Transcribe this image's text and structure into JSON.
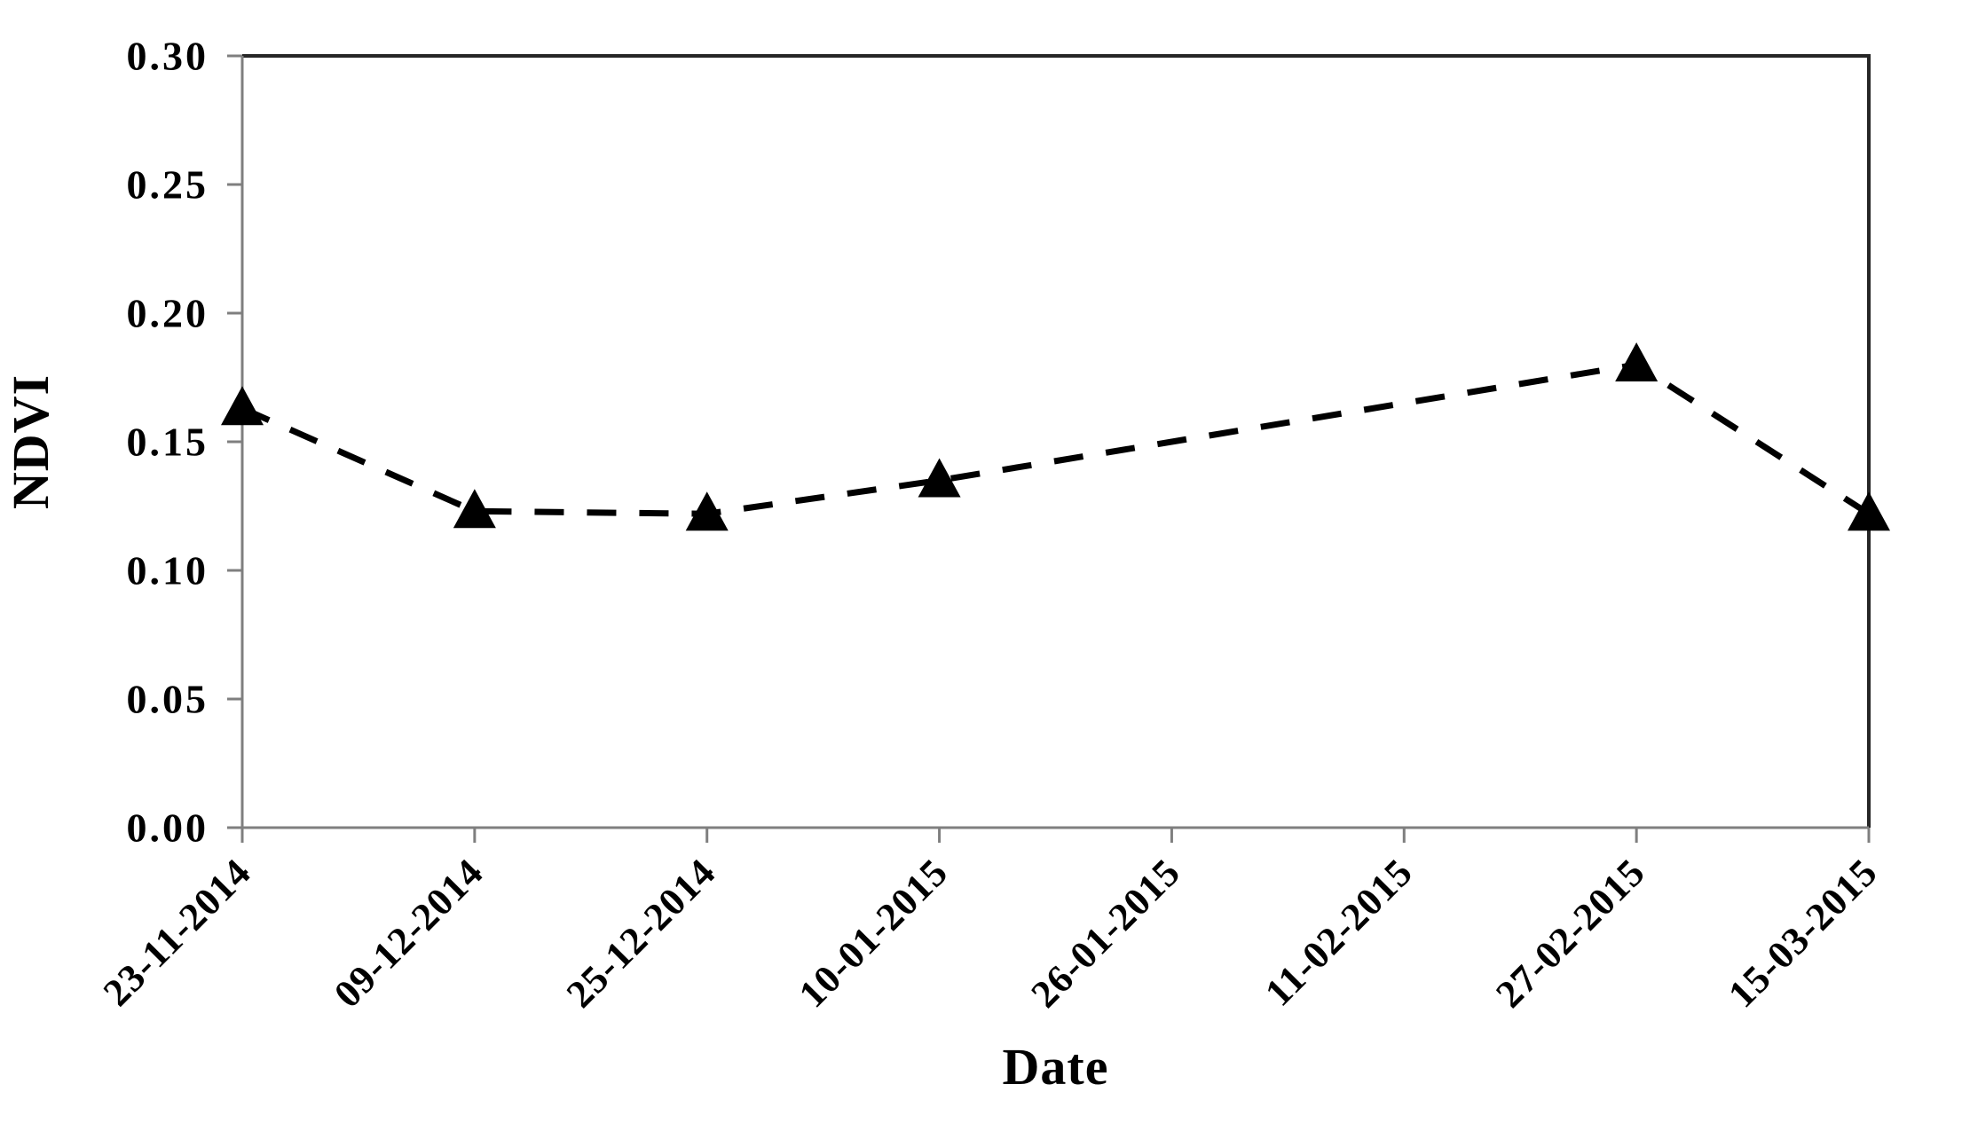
{
  "chart_data": {
    "type": "line",
    "title": "",
    "xlabel": "Date",
    "ylabel": "NDVI",
    "x_categories": [
      "23-11-2014",
      "09-12-2014",
      "25-12-2014",
      "10-01-2015",
      "26-01-2015",
      "11-02-2015",
      "27-02-2015",
      "15-03-2015"
    ],
    "y_tick_labels": [
      "0.00",
      "0.05",
      "0.10",
      "0.15",
      "0.20",
      "0.25",
      "0.30"
    ],
    "y_tick_values": [
      0.0,
      0.05,
      0.1,
      0.15,
      0.2,
      0.25,
      0.3
    ],
    "ylim": [
      0.0,
      0.3
    ],
    "grid": false,
    "legend_position": "none",
    "series": [
      {
        "name": "NDVI",
        "line_style": "dashed",
        "marker": "filled-triangle-up",
        "color": "#000000",
        "points": [
          {
            "date": "23-11-2014",
            "value": 0.163
          },
          {
            "date": "09-12-2014",
            "value": 0.123
          },
          {
            "date": "25-12-2014",
            "value": 0.122
          },
          {
            "date": "10-01-2015",
            "value": 0.135
          },
          {
            "date": "27-02-2015",
            "value": 0.18
          },
          {
            "date": "15-03-2015",
            "value": 0.122
          }
        ]
      }
    ],
    "layout_notes": "No markers at 26-01-2015 and 11-02-2015; the dashed line runs straight from the 10-01-2015 point to the 27-02-2015 point. X tick labels rotated 45 degrees."
  },
  "style": {
    "background": "#ffffff",
    "axis_color": "#7f7f7f",
    "frame_color": "#262626",
    "line_color": "#000000",
    "marker_color": "#000000",
    "text_color": "#000000"
  }
}
